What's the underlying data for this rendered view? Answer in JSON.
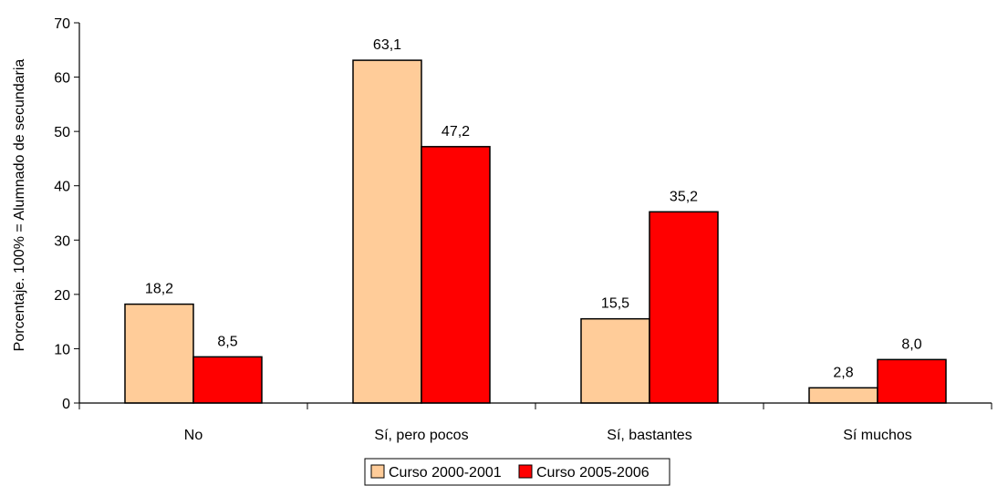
{
  "chart_data": {
    "type": "bar",
    "ylabel": "Porcentaje. 100% = Alumnado de secundaria",
    "xlabel": "",
    "ylim": [
      0,
      70
    ],
    "yticks": [
      0,
      10,
      20,
      30,
      40,
      50,
      60,
      70
    ],
    "grid": false,
    "legend_position": "bottom",
    "categories": [
      "No",
      "Sí, pero pocos",
      "Sí, bastantes",
      "Sí muchos"
    ],
    "series": [
      {
        "name": "Curso 2000-2001",
        "color": "#FFCC99",
        "values": [
          18.2,
          63.1,
          15.5,
          2.8
        ],
        "labels": [
          "18,2",
          "63,1",
          "15,5",
          "2,8"
        ]
      },
      {
        "name": "Curso 2005-2006",
        "color": "#FF0000",
        "values": [
          8.5,
          47.2,
          35.2,
          8.0
        ],
        "labels": [
          "8,5",
          "47,2",
          "35,2",
          "8,0"
        ]
      }
    ]
  }
}
